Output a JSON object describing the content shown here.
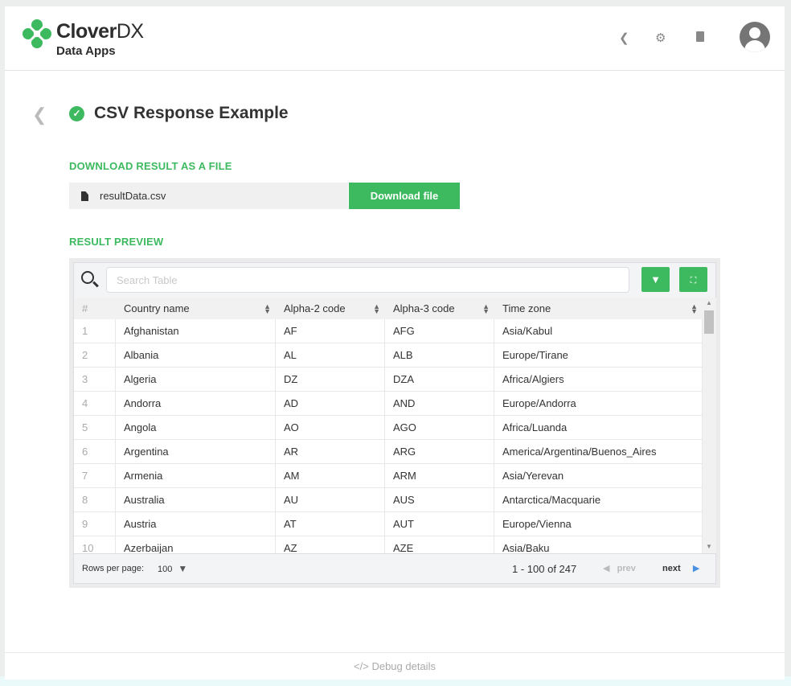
{
  "header": {
    "brand_bold": "Clover",
    "brand_light": "DX",
    "subtitle": "Data Apps",
    "icons": [
      "chevron-left-icon",
      "gear-icon",
      "book-icon",
      "user-avatar-icon"
    ]
  },
  "page": {
    "title": "CSV Response Example",
    "status": "success",
    "download_section": "DOWNLOAD RESULT AS A FILE",
    "file_name": "resultData.csv",
    "download_button": "Download file",
    "preview_section": "RESULT PREVIEW"
  },
  "table": {
    "search_placeholder": "Search Table",
    "columns": [
      "#",
      "Country name",
      "Alpha-2 code",
      "Alpha-3 code",
      "Time zone"
    ],
    "rows": [
      [
        "1",
        "Afghanistan",
        "AF",
        "AFG",
        "Asia/Kabul"
      ],
      [
        "2",
        "Albania",
        "AL",
        "ALB",
        "Europe/Tirane"
      ],
      [
        "3",
        "Algeria",
        "DZ",
        "DZA",
        "Africa/Algiers"
      ],
      [
        "4",
        "Andorra",
        "AD",
        "AND",
        "Europe/Andorra"
      ],
      [
        "5",
        "Angola",
        "AO",
        "AGO",
        "Africa/Luanda"
      ],
      [
        "6",
        "Argentina",
        "AR",
        "ARG",
        "America/Argentina/Buenos_Aires"
      ],
      [
        "7",
        "Armenia",
        "AM",
        "ARM",
        "Asia/Yerevan"
      ],
      [
        "8",
        "Australia",
        "AU",
        "AUS",
        "Antarctica/Macquarie"
      ],
      [
        "9",
        "Austria",
        "AT",
        "AUT",
        "Europe/Vienna"
      ],
      [
        "10",
        "Azerbaijan",
        "AZ",
        "AZE",
        "Asia/Baku"
      ]
    ],
    "rows_per_page_label": "Rows per page:",
    "rows_per_page": "100",
    "range": "1 - 100 of 247",
    "prev": "prev",
    "next": "next"
  },
  "footer": {
    "debug": "Debug details"
  },
  "colors": {
    "accent": "#3dba5f",
    "next_arrow": "#4a90e2"
  }
}
